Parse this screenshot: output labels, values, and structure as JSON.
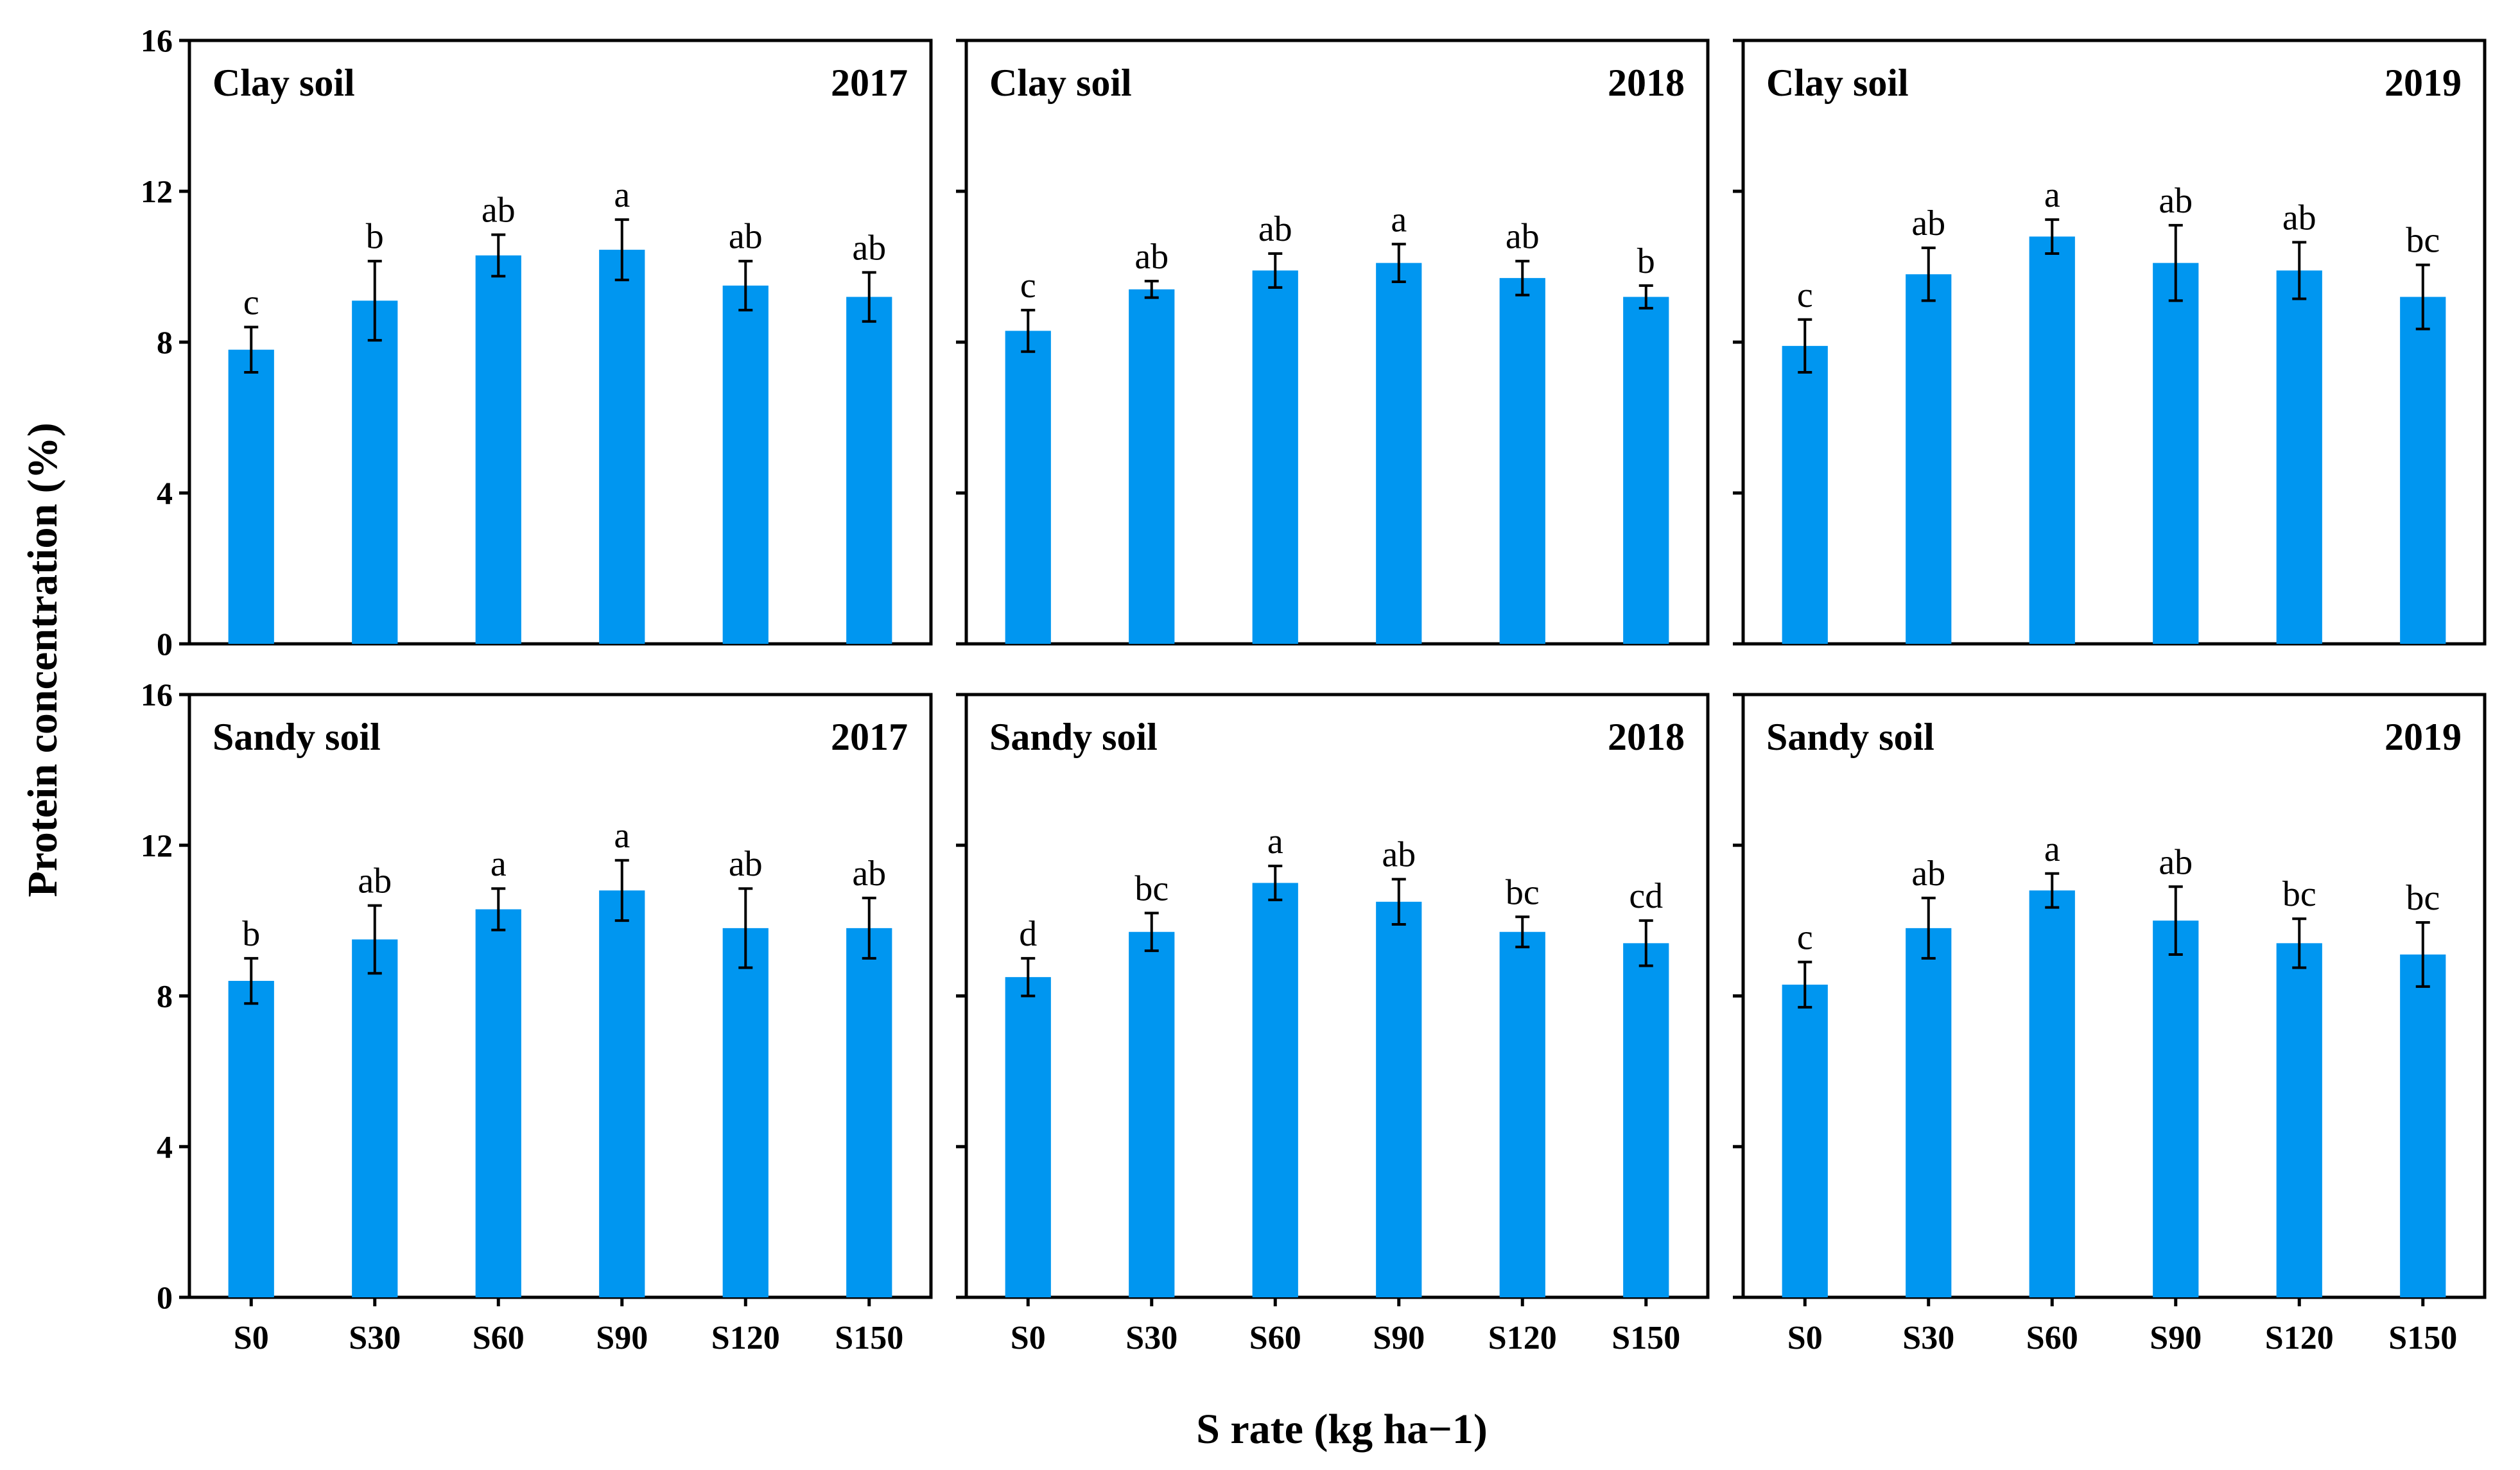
{
  "figure": {
    "ylabel": "Protein concentration (%)",
    "xlabel": "S rate (kg ha−1)",
    "bar_color": "#0096f0"
  },
  "chart_data": [
    {
      "type": "bar",
      "soil": "Clay soil",
      "year": "2017",
      "categories": [
        "S0",
        "S30",
        "S60",
        "S90",
        "S120",
        "S150"
      ],
      "values": [
        7.8,
        9.1,
        10.3,
        10.45,
        9.5,
        9.2
      ],
      "errors": [
        0.6,
        1.05,
        0.55,
        0.8,
        0.65,
        0.65
      ],
      "letters": [
        "c",
        "b",
        "ab",
        "a",
        "ab",
        "ab"
      ],
      "ylim": [
        0,
        16
      ],
      "yticks": [
        "0",
        "4",
        "8",
        "12",
        "16"
      ]
    },
    {
      "type": "bar",
      "soil": "Clay soil",
      "year": "2018",
      "categories": [
        "S0",
        "S30",
        "S60",
        "S90",
        "S120",
        "S150"
      ],
      "values": [
        8.3,
        9.4,
        9.9,
        10.1,
        9.7,
        9.2
      ],
      "errors": [
        0.55,
        0.22,
        0.45,
        0.5,
        0.45,
        0.3
      ],
      "letters": [
        "c",
        "ab",
        "ab",
        "a",
        "ab",
        "b"
      ],
      "ylim": [
        0,
        16
      ],
      "yticks": [
        "0",
        "4",
        "8",
        "12",
        "16"
      ]
    },
    {
      "type": "bar",
      "soil": "Clay soil",
      "year": "2019",
      "categories": [
        "S0",
        "S30",
        "S60",
        "S90",
        "S120",
        "S150"
      ],
      "values": [
        7.9,
        9.8,
        10.8,
        10.1,
        9.9,
        9.2
      ],
      "errors": [
        0.7,
        0.7,
        0.45,
        1.0,
        0.75,
        0.85
      ],
      "letters": [
        "c",
        "ab",
        "a",
        "ab",
        "ab",
        "bc"
      ],
      "ylim": [
        0,
        16
      ],
      "yticks": [
        "0",
        "4",
        "8",
        "12",
        "16"
      ]
    },
    {
      "type": "bar",
      "soil": "Sandy soil",
      "year": "2017",
      "categories": [
        "S0",
        "S30",
        "S60",
        "S90",
        "S120",
        "S150"
      ],
      "values": [
        8.4,
        9.5,
        10.3,
        10.8,
        9.8,
        9.8
      ],
      "errors": [
        0.6,
        0.9,
        0.55,
        0.8,
        1.05,
        0.8
      ],
      "letters": [
        "b",
        "ab",
        "a",
        "a",
        "ab",
        "ab"
      ],
      "ylim": [
        0,
        16
      ],
      "yticks": [
        "0",
        "4",
        "8",
        "12",
        "16"
      ]
    },
    {
      "type": "bar",
      "soil": "Sandy soil",
      "year": "2018",
      "categories": [
        "S0",
        "S30",
        "S60",
        "S90",
        "S120",
        "S150"
      ],
      "values": [
        8.5,
        9.7,
        11.0,
        10.5,
        9.7,
        9.4
      ],
      "errors": [
        0.5,
        0.5,
        0.45,
        0.6,
        0.4,
        0.6
      ],
      "letters": [
        "d",
        "bc",
        "a",
        "ab",
        "bc",
        "cd"
      ],
      "ylim": [
        0,
        16
      ],
      "yticks": [
        "0",
        "4",
        "8",
        "12",
        "16"
      ]
    },
    {
      "type": "bar",
      "soil": "Sandy soil",
      "year": "2019",
      "categories": [
        "S0",
        "S30",
        "S60",
        "S90",
        "S120",
        "S150"
      ],
      "values": [
        8.3,
        9.8,
        10.8,
        10.0,
        9.4,
        9.1
      ],
      "errors": [
        0.6,
        0.8,
        0.45,
        0.9,
        0.65,
        0.85
      ],
      "letters": [
        "c",
        "ab",
        "a",
        "ab",
        "bc",
        "bc"
      ],
      "ylim": [
        0,
        16
      ],
      "yticks": [
        "0",
        "4",
        "8",
        "12",
        "16"
      ]
    }
  ]
}
